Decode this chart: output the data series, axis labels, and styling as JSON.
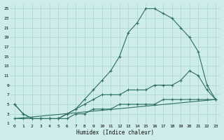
{
  "xlabel": "Humidex (Indice chaleur)",
  "bg_color": "#cdecea",
  "grid_color": "#afd8d5",
  "line_color": "#2d6e65",
  "xlim": [
    -0.5,
    23.5
  ],
  "ylim": [
    1,
    26
  ],
  "xticks": [
    0,
    1,
    2,
    3,
    4,
    5,
    6,
    7,
    8,
    9,
    10,
    11,
    12,
    13,
    14,
    15,
    16,
    17,
    18,
    19,
    20,
    21,
    22,
    23
  ],
  "yticks": [
    1,
    3,
    5,
    7,
    9,
    11,
    13,
    15,
    17,
    19,
    21,
    23,
    25
  ],
  "line1_x": [
    0,
    1,
    2,
    3,
    4,
    5,
    6,
    7,
    8,
    9,
    10,
    11,
    12,
    13,
    14,
    15,
    16,
    17,
    18,
    19,
    20,
    21,
    22,
    23
  ],
  "line1_y": [
    5,
    3,
    2,
    2,
    2,
    2,
    3,
    4,
    6,
    8,
    10,
    12,
    15,
    20,
    22,
    25,
    25,
    24,
    23,
    21,
    19,
    16,
    9,
    6
  ],
  "line2_x": [
    0,
    1,
    2,
    3,
    4,
    5,
    6,
    7,
    8,
    9,
    10,
    11,
    12,
    13,
    14,
    15,
    16,
    17,
    18,
    19,
    20,
    21,
    22,
    23
  ],
  "line2_y": [
    5,
    3,
    2,
    2,
    2,
    2,
    3,
    4,
    5,
    6,
    7,
    7,
    7,
    8,
    8,
    8,
    9,
    9,
    9,
    10,
    12,
    11,
    8,
    6
  ],
  "line3_x": [
    0,
    1,
    2,
    3,
    4,
    5,
    6,
    7,
    8,
    9,
    10,
    11,
    12,
    13,
    14,
    15,
    16,
    17,
    18,
    19,
    20,
    21,
    22,
    23
  ],
  "line3_y": [
    2,
    2,
    2,
    2,
    2,
    2,
    2,
    3,
    3,
    4,
    4,
    4,
    5,
    5,
    5,
    5,
    5,
    6,
    6,
    6,
    6,
    6,
    6,
    6
  ],
  "line4_x": [
    0,
    23
  ],
  "line4_y": [
    2,
    6
  ]
}
